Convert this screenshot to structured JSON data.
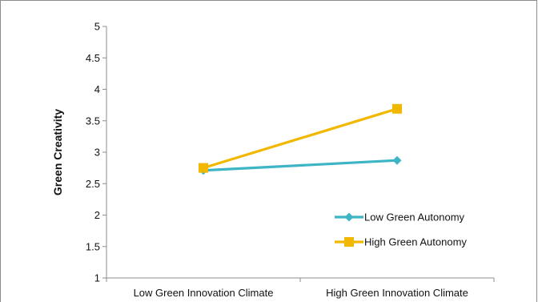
{
  "chart_data": {
    "type": "line",
    "title": "",
    "xlabel": "",
    "ylabel": "Green Creativity",
    "categories": [
      "Low Green Innovation Climate",
      "High Green Innovation Climate"
    ],
    "ylim": [
      1,
      5
    ],
    "yticks": [
      "1",
      "1.5",
      "2",
      "2.5",
      "3",
      "3.5",
      "4",
      "4.5",
      "5"
    ],
    "grid": false,
    "legend_position": "lower-right",
    "series": [
      {
        "name": "Low Green Autonomy",
        "values": [
          2.71,
          2.87
        ],
        "color": "#3db5c6",
        "marker": "diamond"
      },
      {
        "name": "High Green Autonomy",
        "values": [
          2.75,
          3.69
        ],
        "color": "#f2b800",
        "marker": "square"
      }
    ]
  }
}
